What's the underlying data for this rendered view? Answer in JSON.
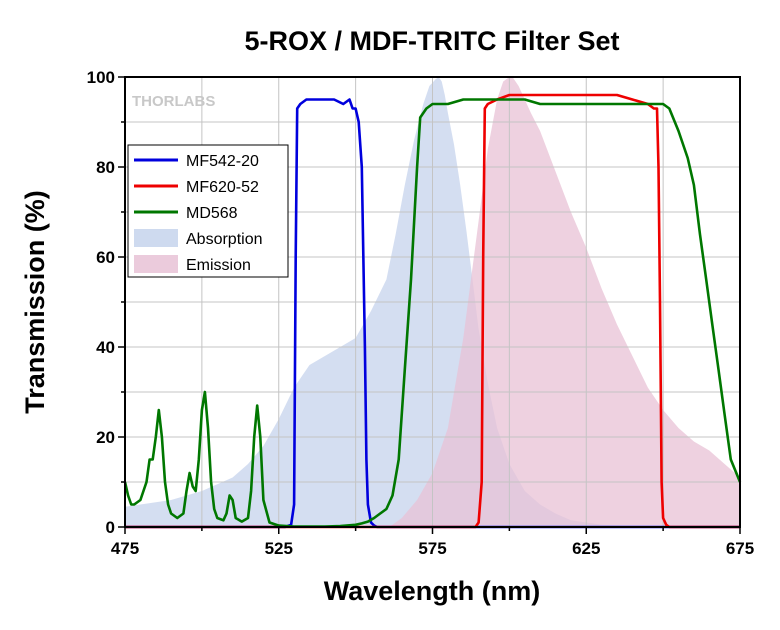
{
  "chart_data": {
    "type": "line",
    "title": "5-ROX / MDF-TRITC Filter Set",
    "xlabel": "Wavelength (nm)",
    "ylabel": "Transmission (%)",
    "xlim": [
      475,
      675
    ],
    "ylim": [
      0,
      100
    ],
    "x_ticks": [
      475,
      525,
      575,
      625,
      675
    ],
    "y_ticks": [
      0,
      20,
      40,
      60,
      80,
      100
    ],
    "grid": true,
    "legend_position": "left",
    "watermark": "THORLABS",
    "series": [
      {
        "name": "MF542-20",
        "kind": "line",
        "color": "#0000dd",
        "x": [
          475,
          527,
          529,
          530,
          530.5,
          531,
          532,
          534,
          537,
          540,
          543,
          546,
          548,
          549,
          550,
          551,
          552,
          553,
          553.5,
          554,
          555,
          556,
          557,
          675
        ],
        "y": [
          0,
          0,
          0.5,
          5,
          60,
          93,
          94,
          95,
          95,
          95,
          95,
          94,
          95,
          93,
          93,
          90,
          80,
          40,
          15,
          5,
          1,
          0.3,
          0,
          0
        ]
      },
      {
        "name": "MF620-52",
        "kind": "line",
        "color": "#ee0000",
        "x": [
          475,
          589,
          590,
          591,
          591.5,
          592,
          593,
          596,
          600,
          605,
          610,
          615,
          620,
          625,
          630,
          635,
          640,
          645,
          647,
          648,
          648.5,
          649,
          649.5,
          650,
          651,
          652,
          675
        ],
        "y": [
          0,
          0,
          1,
          10,
          60,
          93,
          94,
          95,
          96,
          96,
          96,
          96,
          96,
          96,
          96,
          96,
          95,
          94,
          93,
          93,
          80,
          50,
          10,
          2,
          0.5,
          0,
          0
        ]
      },
      {
        "name": "MD568",
        "kind": "line",
        "color": "#007700",
        "x": [
          475,
          476,
          477,
          478,
          480,
          482,
          483,
          484,
          485,
          486,
          487,
          488,
          489,
          490,
          492,
          494,
          495,
          496,
          497,
          498,
          499,
          500,
          501,
          502,
          503,
          504,
          505,
          507,
          508,
          509,
          510,
          511,
          513,
          515,
          516,
          517,
          518,
          519,
          520,
          522,
          525,
          530,
          535,
          540,
          545,
          550,
          552,
          554,
          556,
          558,
          560,
          562,
          564,
          566,
          568,
          570,
          571,
          572,
          573,
          575,
          580,
          585,
          590,
          595,
          600,
          605,
          610,
          615,
          620,
          625,
          630,
          635,
          640,
          645,
          650,
          652,
          655,
          658,
          660,
          662,
          664,
          666,
          668,
          670,
          672,
          675
        ],
        "y": [
          10,
          7,
          5,
          5,
          6,
          10,
          15,
          15,
          20,
          26,
          20,
          10,
          5,
          3,
          2,
          3,
          8,
          12,
          9,
          8,
          15,
          26,
          30,
          22,
          10,
          4,
          2,
          1.5,
          3,
          7,
          6,
          2,
          1.2,
          2,
          8,
          20,
          27,
          20,
          6,
          1,
          0.3,
          0.1,
          0.1,
          0.1,
          0.2,
          0.5,
          0.8,
          1.2,
          2,
          3,
          4,
          7,
          15,
          35,
          55,
          80,
          91,
          92,
          93,
          94,
          94,
          95,
          95,
          95,
          95,
          95,
          94,
          94,
          94,
          94,
          94,
          94,
          94,
          94,
          94,
          93,
          88,
          82,
          76,
          65,
          55,
          45,
          35,
          25,
          15,
          10
        ]
      },
      {
        "name": "Absorption",
        "kind": "area",
        "color": "#c5d3ec",
        "x": [
          475,
          480,
          485,
          490,
          495,
          500,
          505,
          510,
          515,
          520,
          525,
          530,
          535,
          540,
          545,
          550,
          555,
          560,
          563,
          566,
          569,
          572,
          574,
          576,
          577,
          578,
          579,
          580,
          582,
          584,
          586,
          588,
          590,
          593,
          596,
          600,
          605,
          610,
          615,
          620,
          625,
          630,
          640,
          660,
          675
        ],
        "y": [
          4.5,
          5,
          5.5,
          6,
          7,
          8,
          9.5,
          11,
          14,
          18,
          24,
          31,
          36,
          38,
          40,
          42,
          48,
          55,
          65,
          76,
          86,
          94,
          98,
          99.5,
          100,
          99,
          96,
          92,
          85,
          76,
          66,
          55,
          44,
          32,
          22,
          14,
          8,
          5,
          3,
          1.5,
          1,
          0.5,
          0.2,
          0,
          0
        ]
      },
      {
        "name": "Emission",
        "kind": "area",
        "color": "#e8c2d6",
        "x": [
          561,
          565,
          570,
          575,
          580,
          585,
          590,
          593,
          596,
          598,
          600,
          601,
          603,
          605,
          607,
          610,
          615,
          620,
          625,
          630,
          635,
          640,
          645,
          650,
          655,
          660,
          665,
          670,
          675
        ],
        "y": [
          0,
          2,
          6,
          12,
          22,
          42,
          68,
          84,
          95,
          99,
          100,
          100,
          98,
          95,
          92,
          88,
          79,
          70,
          62,
          53,
          45,
          38,
          31,
          26,
          22,
          19,
          17,
          14,
          11
        ]
      }
    ]
  }
}
